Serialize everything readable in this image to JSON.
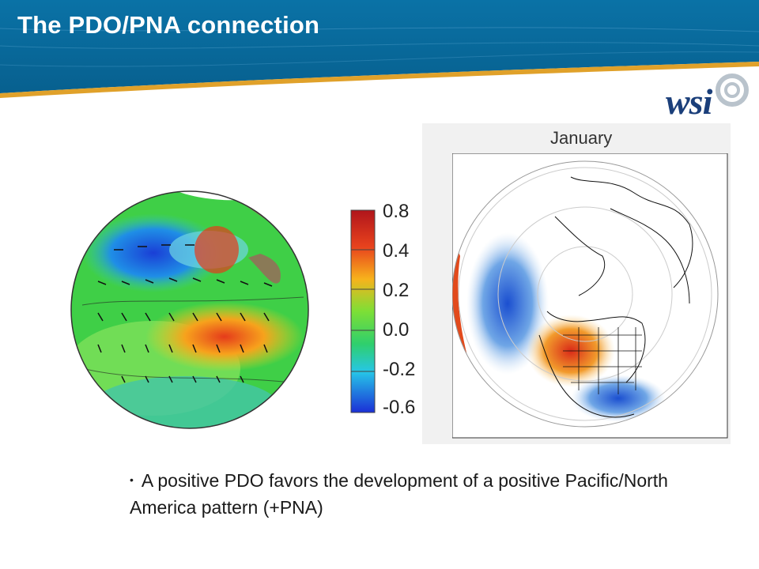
{
  "slide": {
    "title": "The PDO/PNA connection",
    "colors": {
      "header_blue": "#0a6b9c",
      "accent_gold": "#e0a12a"
    }
  },
  "logo": {
    "text": "wsi",
    "icon": "swirl-icon"
  },
  "left_figure": {
    "type": "pdo-globe-map"
  },
  "colorbar": {
    "labels": [
      "0.8",
      "0.4",
      "0.2",
      "0.0",
      "-0.2",
      "-0.6"
    ]
  },
  "right_figure": {
    "title": "January",
    "type": "pna-polar-map"
  },
  "bullet": {
    "text": "A positive PDO favors the development of a positive Pacific/North America pattern (+PNA)"
  }
}
